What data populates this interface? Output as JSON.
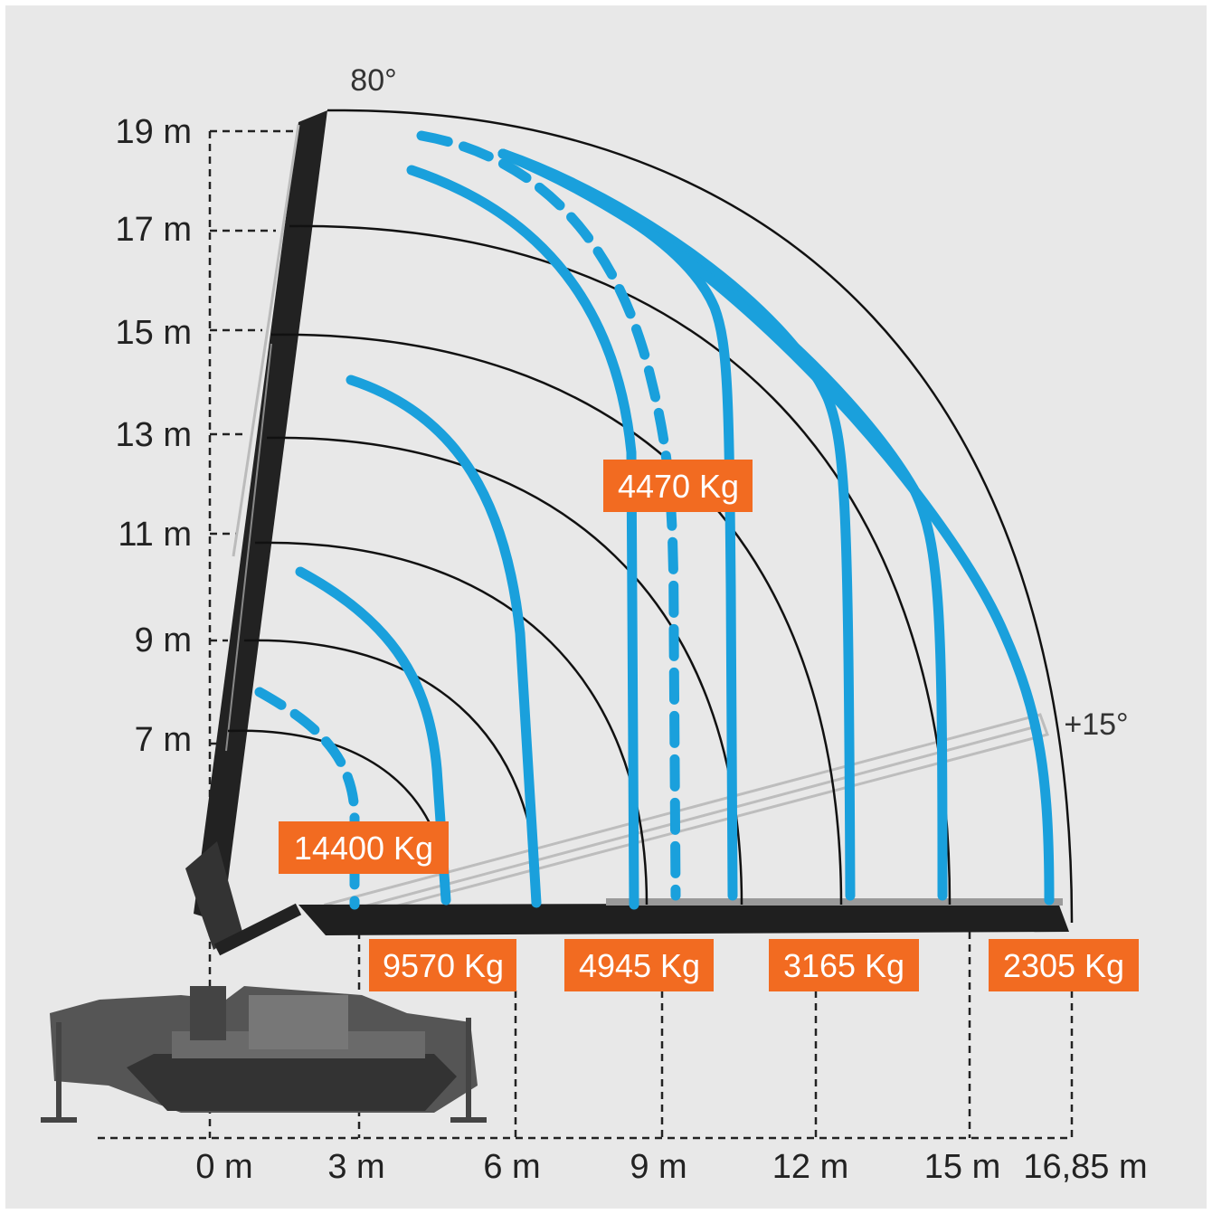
{
  "angles": {
    "top": "80°",
    "bottom": "+15°"
  },
  "y_axis": [
    "7 m",
    "9 m",
    "11 m",
    "13 m",
    "15 m",
    "17 m",
    "19 m"
  ],
  "x_axis": [
    "0 m",
    "3 m",
    "6 m",
    "9 m",
    "12 m",
    "15 m",
    "16,85 m"
  ],
  "loads_upper": [
    "14400 Kg",
    "4470 Kg"
  ],
  "loads_lower": [
    "9570 Kg",
    "4945 Kg",
    "3165 Kg",
    "2305 Kg"
  ],
  "colors": {
    "curve": "#1aa0dc",
    "badge": "#f26b21",
    "arc": "#111111",
    "background": "#e8e8e8"
  }
}
